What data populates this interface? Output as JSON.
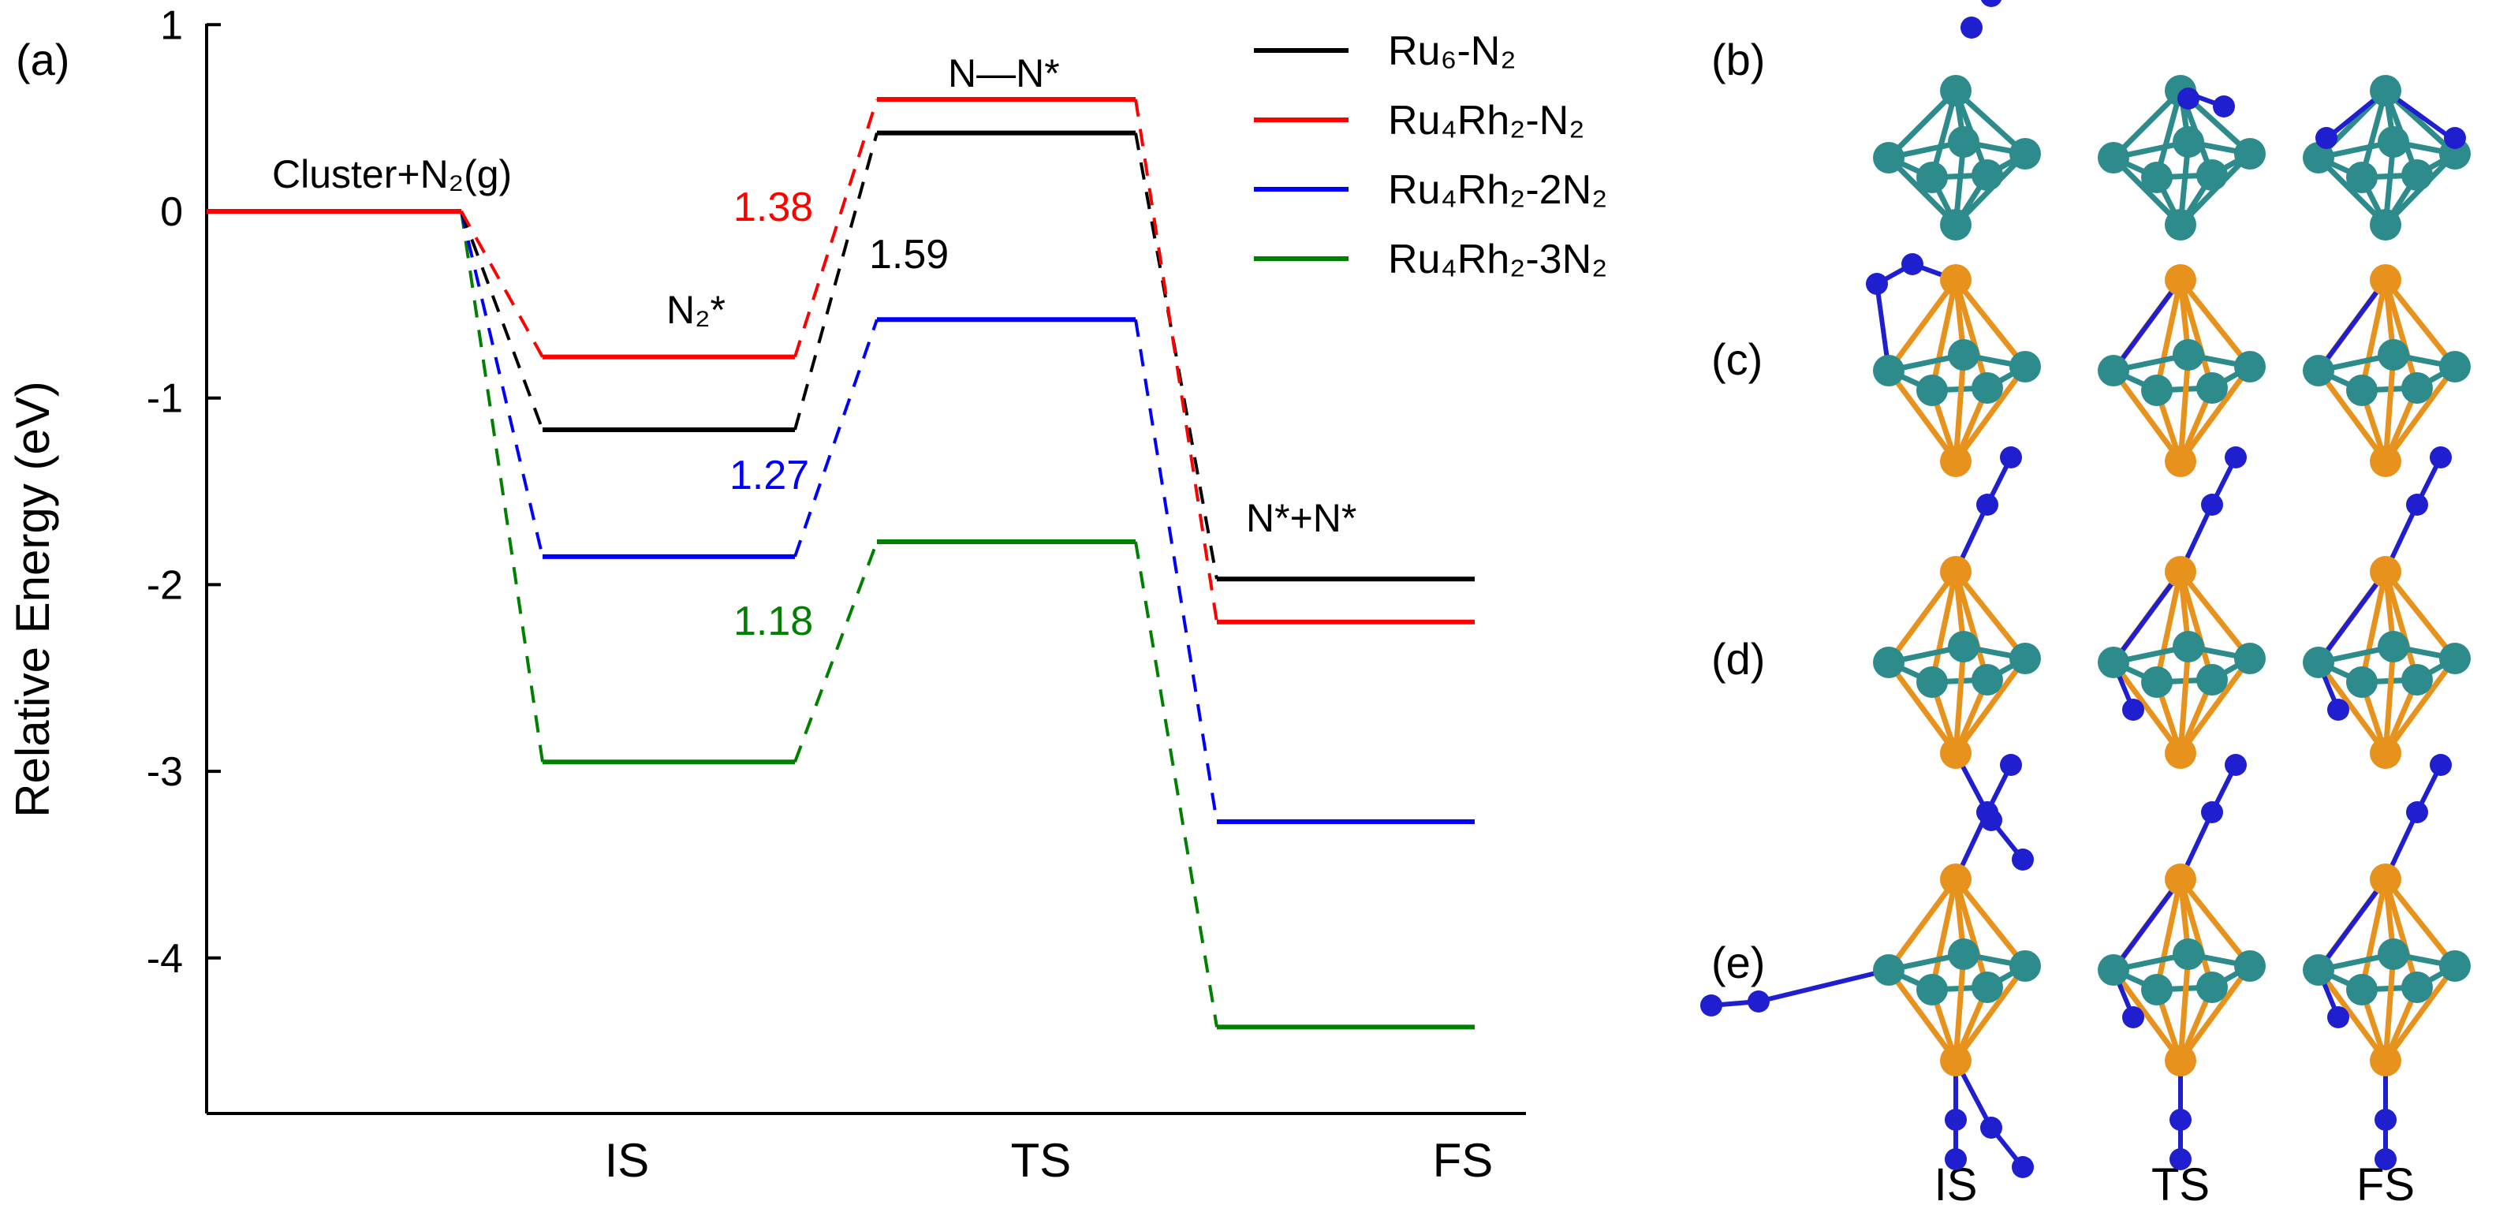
{
  "chart_data": {
    "type": "energy-profile",
    "panel_label": "(a)",
    "ylabel": "Relative Energy (eV)",
    "ylim": [
      -4.75,
      1.0
    ],
    "yticks": [
      1,
      0,
      -1,
      -2,
      -3,
      -4
    ],
    "ytick_labels": [
      "1",
      "0",
      "-1",
      "-2",
      "-3",
      "-4"
    ],
    "categories": [
      "IS",
      "TS",
      "FS"
    ],
    "initial_state_label": "Cluster+N₂(g)",
    "state_annotations": [
      {
        "text": "N₂*",
        "at": "IS"
      },
      {
        "text": "N—N*",
        "at": "TS"
      },
      {
        "text": "N*+N*",
        "at": "FS"
      }
    ],
    "series": [
      {
        "name": "Ru₆-N₂",
        "color": "#000000",
        "initial": 0,
        "values": [
          -1.17,
          0.42,
          -1.97
        ]
      },
      {
        "name": "Ru₄Rh₂-N₂",
        "color": "#ff0000",
        "initial": 0,
        "values": [
          -0.78,
          0.6,
          -2.2
        ]
      },
      {
        "name": "Ru₄Rh₂-2N₂",
        "color": "#0000ff",
        "initial": 0,
        "values": [
          -1.85,
          -0.58,
          -3.27
        ]
      },
      {
        "name": "Ru₄Rh₂-3N₂",
        "color": "#008000",
        "initial": 0,
        "values": [
          -2.95,
          -1.77,
          -4.37
        ]
      }
    ],
    "barriers": [
      {
        "text": "1.38",
        "color": "#ff0000",
        "series": "Ru₄Rh₂-N₂"
      },
      {
        "text": "1.59",
        "color": "#000000",
        "series": "Ru₆-N₂"
      },
      {
        "text": "1.27",
        "color": "#0000ff",
        "series": "Ru₄Rh₂-2N₂"
      },
      {
        "text": "1.18",
        "color": "#008000",
        "series": "Ru₄Rh₂-3N₂"
      }
    ]
  },
  "structures": {
    "row_labels": [
      "(b)",
      "(c)",
      "(d)",
      "(e)"
    ],
    "col_labels": [
      "IS",
      "TS",
      "FS"
    ],
    "atom_colors": {
      "Ru": "#2e8b8b",
      "Rh": "#e8921e",
      "N": "#1f1fd0"
    }
  }
}
